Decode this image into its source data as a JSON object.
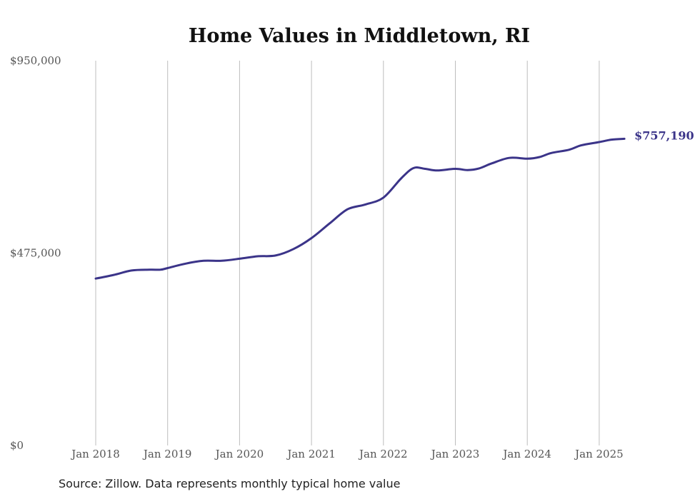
{
  "chart_data": {
    "type": "line",
    "title": "Home Values in Middletown, RI",
    "xlabel": "",
    "ylabel": "",
    "ylim": [
      0,
      950000
    ],
    "y_ticks": [
      {
        "value": 0,
        "label": "$0"
      },
      {
        "value": 475000,
        "label": "$475,000"
      },
      {
        "value": 950000,
        "label": "$950,000"
      }
    ],
    "x_ticks": [
      {
        "value": 2018,
        "label": "Jan 2018"
      },
      {
        "value": 2019,
        "label": "Jan 2019"
      },
      {
        "value": 2020,
        "label": "Jan 2020"
      },
      {
        "value": 2021,
        "label": "Jan 2021"
      },
      {
        "value": 2022,
        "label": "Jan 2022"
      },
      {
        "value": 2023,
        "label": "Jan 2023"
      },
      {
        "value": 2024,
        "label": "Jan 2024"
      },
      {
        "value": 2025,
        "label": "Jan 2025"
      }
    ],
    "xlim": [
      2018,
      2025.35
    ],
    "grid": "vertical",
    "line_color": "#3b3489",
    "end_label": "$757,190",
    "series": [
      {
        "values": [
          {
            "x": 2018.0,
            "y": 412000
          },
          {
            "x": 2018.25,
            "y": 421000
          },
          {
            "x": 2018.5,
            "y": 432000
          },
          {
            "x": 2018.75,
            "y": 434000
          },
          {
            "x": 2018.9,
            "y": 434000
          },
          {
            "x": 2019.0,
            "y": 438000
          },
          {
            "x": 2019.25,
            "y": 449000
          },
          {
            "x": 2019.5,
            "y": 456000
          },
          {
            "x": 2019.75,
            "y": 456000
          },
          {
            "x": 2020.0,
            "y": 461000
          },
          {
            "x": 2020.25,
            "y": 467000
          },
          {
            "x": 2020.5,
            "y": 469000
          },
          {
            "x": 2020.75,
            "y": 485000
          },
          {
            "x": 2021.0,
            "y": 512000
          },
          {
            "x": 2021.25,
            "y": 548000
          },
          {
            "x": 2021.5,
            "y": 583000
          },
          {
            "x": 2021.75,
            "y": 595000
          },
          {
            "x": 2022.0,
            "y": 612000
          },
          {
            "x": 2022.25,
            "y": 660000
          },
          {
            "x": 2022.42,
            "y": 685000
          },
          {
            "x": 2022.58,
            "y": 683000
          },
          {
            "x": 2022.75,
            "y": 679000
          },
          {
            "x": 2023.0,
            "y": 683000
          },
          {
            "x": 2023.17,
            "y": 680000
          },
          {
            "x": 2023.33,
            "y": 684000
          },
          {
            "x": 2023.5,
            "y": 696000
          },
          {
            "x": 2023.75,
            "y": 710000
          },
          {
            "x": 2024.0,
            "y": 708000
          },
          {
            "x": 2024.17,
            "y": 712000
          },
          {
            "x": 2024.33,
            "y": 722000
          },
          {
            "x": 2024.58,
            "y": 730000
          },
          {
            "x": 2024.75,
            "y": 741000
          },
          {
            "x": 2025.0,
            "y": 749000
          },
          {
            "x": 2025.17,
            "y": 755000
          },
          {
            "x": 2025.35,
            "y": 757190
          }
        ]
      }
    ]
  },
  "footer": {
    "source": "Source: Zillow. Data represents monthly typical home value"
  }
}
